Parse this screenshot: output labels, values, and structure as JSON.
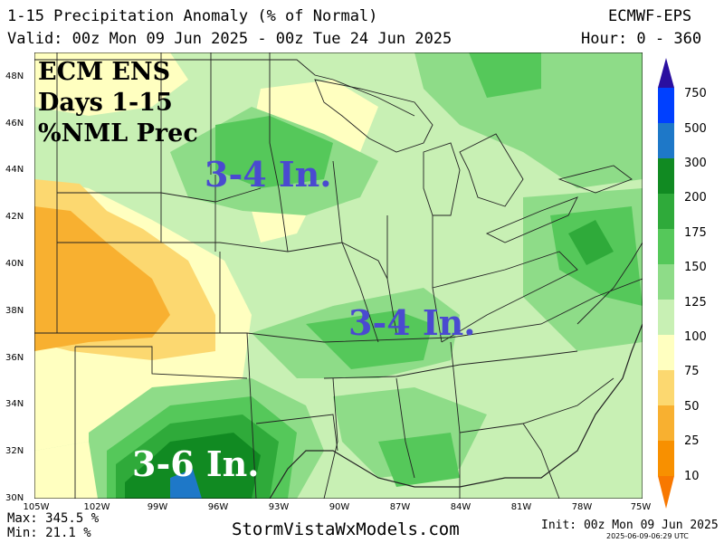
{
  "header": {
    "title": "1-15 Precipitation Anomaly (% of Normal)",
    "model": "ECMWF-EPS",
    "valid": "Valid: 00z Mon 09 Jun 2025 - 00z Tue 24 Jun 2025",
    "hour": "Hour: 0 - 360"
  },
  "overlay": {
    "line1": "ECM ENS",
    "line2": "Days 1-15",
    "line3": "%NML Prec",
    "note_north": "3-4 In.",
    "note_east": "3-4 In.",
    "note_south": "3-6 In."
  },
  "axes": {
    "lat_labels": [
      "48N",
      "46N",
      "44N",
      "42N",
      "40N",
      "38N",
      "36N",
      "34N",
      "32N",
      "30N"
    ],
    "lon_labels": [
      "105W",
      "102W",
      "99W",
      "96W",
      "93W",
      "90W",
      "87W",
      "84W",
      "81W",
      "78W",
      "75W"
    ]
  },
  "legend": {
    "levels": [
      "750",
      "500",
      "300",
      "200",
      "175",
      "150",
      "125",
      "100",
      "75",
      "50",
      "25",
      "10"
    ],
    "colors": [
      "#2a0fa0",
      "#0040ff",
      "#1e78c8",
      "#118a22",
      "#2faa3a",
      "#55c85a",
      "#8edc88",
      "#c8f0b4",
      "#ffffc0",
      "#fcd870",
      "#f8b030",
      "#f89000",
      "#f87800"
    ]
  },
  "footer": {
    "max": "Max: 345.5 %",
    "min": "Min: 21.1 %",
    "site": "StormVistaWxModels.com",
    "init": "Init: 00z Mon 09 Jun 2025",
    "stamp": "2025-06-09-06:29 UTC"
  }
}
